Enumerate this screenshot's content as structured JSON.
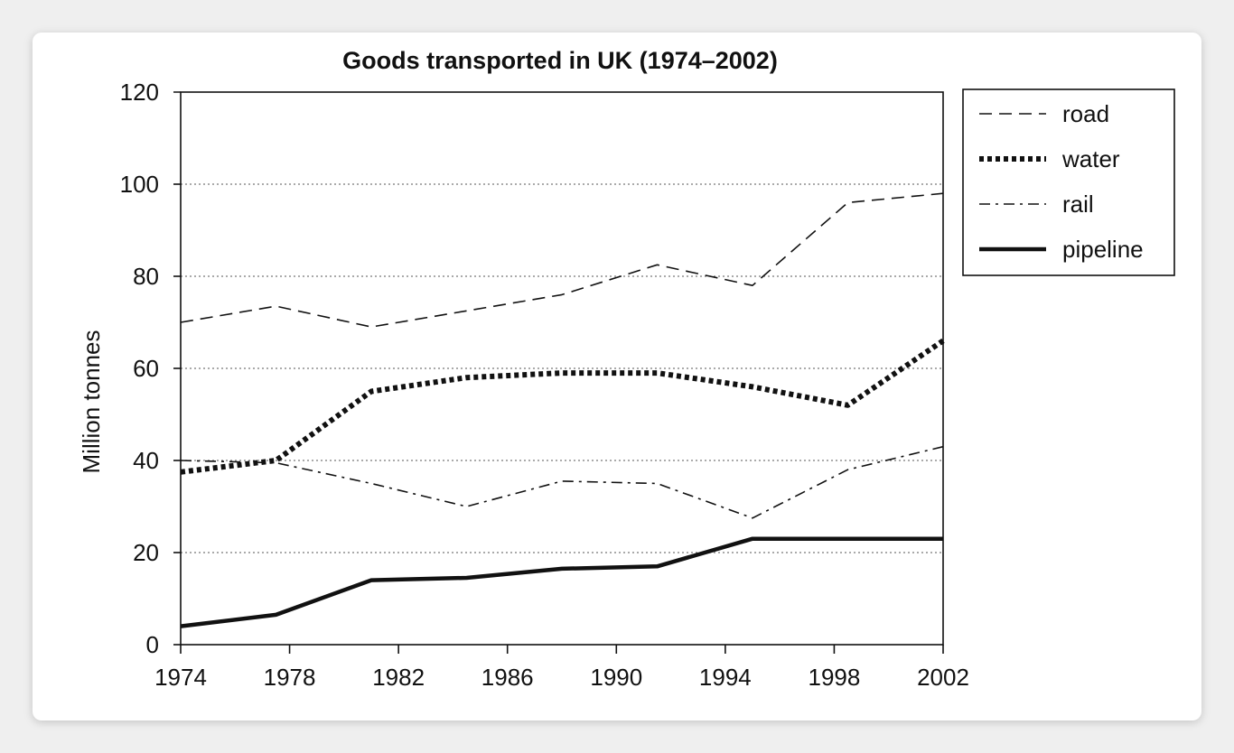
{
  "chart_data": {
    "type": "line",
    "title": "Goods transported in UK (1974–2002)",
    "xlabel": "",
    "ylabel": "Million tonnes",
    "xlim": [
      1974,
      2002
    ],
    "ylim": [
      0,
      120
    ],
    "x_ticks": [
      "1974",
      "1978",
      "1982",
      "1986",
      "1990",
      "1994",
      "1998",
      "2002"
    ],
    "y_ticks": [
      "0",
      "20",
      "40",
      "60",
      "80",
      "100",
      "120"
    ],
    "grid": "horizontal dotted",
    "legend_position": "right",
    "series": [
      {
        "name": "road",
        "style": "dashed",
        "points": [
          [
            1974,
            70
          ],
          [
            1977.5,
            73.5
          ],
          [
            1981,
            69
          ],
          [
            1984.5,
            72.5
          ],
          [
            1988,
            76
          ],
          [
            1991.5,
            82.5
          ],
          [
            1995,
            78
          ],
          [
            1998.5,
            96
          ],
          [
            2002,
            98
          ]
        ]
      },
      {
        "name": "water",
        "style": "dotted-thick",
        "points": [
          [
            1974,
            37.5
          ],
          [
            1977.5,
            40
          ],
          [
            1981,
            55
          ],
          [
            1984.5,
            58
          ],
          [
            1988,
            59
          ],
          [
            1991.5,
            59
          ],
          [
            1995,
            56
          ],
          [
            1998.5,
            52
          ],
          [
            2002,
            66
          ]
        ]
      },
      {
        "name": "rail",
        "style": "dash-dot",
        "points": [
          [
            1974,
            40
          ],
          [
            1977.5,
            39.5
          ],
          [
            1981,
            35
          ],
          [
            1984.5,
            30
          ],
          [
            1988,
            35.5
          ],
          [
            1991.5,
            35
          ],
          [
            1995,
            27.5
          ],
          [
            1998.5,
            38
          ],
          [
            2002,
            43
          ]
        ]
      },
      {
        "name": "pipeline",
        "style": "solid-thick",
        "points": [
          [
            1974,
            4
          ],
          [
            1977.5,
            6.5
          ],
          [
            1981,
            14
          ],
          [
            1984.5,
            14.5
          ],
          [
            1988,
            16.5
          ],
          [
            1991.5,
            17
          ],
          [
            1995,
            23
          ],
          [
            1998.5,
            23
          ],
          [
            2002,
            23
          ]
        ]
      }
    ]
  }
}
